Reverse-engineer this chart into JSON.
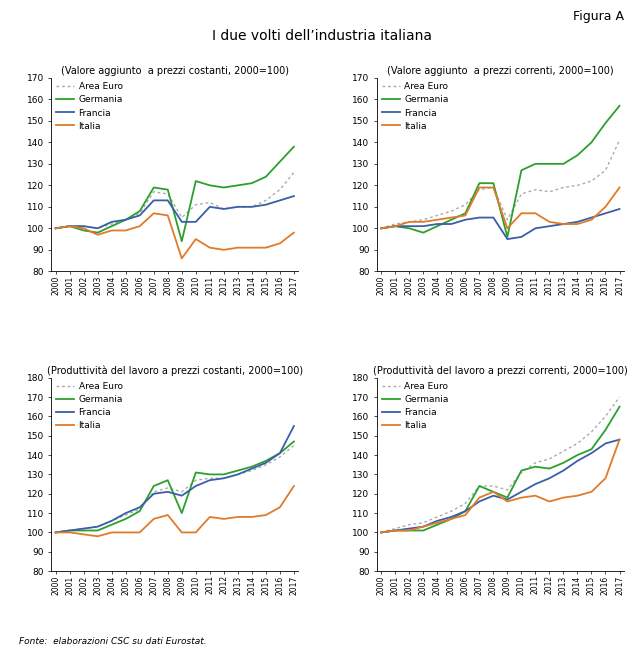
{
  "title": "I due volti dell’industria italiana",
  "figura": "Figura A",
  "fonte": "Fonte:  elaborazioni CSC su dati Eurostat.",
  "years": [
    2000,
    2001,
    2002,
    2003,
    2004,
    2005,
    2006,
    2007,
    2008,
    2009,
    2010,
    2011,
    2012,
    2013,
    2014,
    2015,
    2016,
    2017
  ],
  "subplots": [
    {
      "title": "(Valore aggiunto  a prezzi costanti, 2000=100)",
      "ylim": [
        80,
        170
      ],
      "yticks": [
        80,
        90,
        100,
        110,
        120,
        130,
        140,
        150,
        160,
        170
      ],
      "area_euro": [
        100,
        101,
        101,
        100,
        102,
        104,
        107,
        117,
        116,
        105,
        111,
        112,
        109,
        110,
        110,
        113,
        118,
        126
      ],
      "germania": [
        100,
        101,
        99,
        98,
        101,
        104,
        108,
        119,
        118,
        94,
        122,
        120,
        119,
        120,
        121,
        124,
        131,
        138
      ],
      "francia": [
        100,
        101,
        101,
        100,
        103,
        104,
        106,
        113,
        113,
        103,
        103,
        110,
        109,
        110,
        110,
        111,
        113,
        115
      ],
      "italia": [
        100,
        101,
        100,
        97,
        99,
        99,
        101,
        107,
        106,
        86,
        95,
        91,
        90,
        91,
        91,
        91,
        93,
        98
      ]
    },
    {
      "title": "(Valore aggiunto  a prezzi correnti, 2000=100)",
      "ylim": [
        80,
        170
      ],
      "yticks": [
        80,
        90,
        100,
        110,
        120,
        130,
        140,
        150,
        160,
        170
      ],
      "area_euro": [
        100,
        102,
        103,
        104,
        106,
        108,
        111,
        118,
        119,
        104,
        116,
        118,
        117,
        119,
        120,
        122,
        127,
        141
      ],
      "germania": [
        100,
        101,
        100,
        98,
        101,
        104,
        107,
        121,
        121,
        96,
        127,
        130,
        130,
        130,
        134,
        140,
        149,
        157
      ],
      "francia": [
        100,
        101,
        101,
        101,
        102,
        102,
        104,
        105,
        105,
        95,
        96,
        100,
        101,
        102,
        103,
        105,
        107,
        109
      ],
      "italia": [
        100,
        101,
        103,
        103,
        104,
        105,
        106,
        119,
        119,
        100,
        107,
        107,
        103,
        102,
        102,
        104,
        110,
        119
      ]
    },
    {
      "title": "(Produttività del lavoro a prezzi costanti, 2000=100)",
      "ylim": [
        80,
        180
      ],
      "yticks": [
        80,
        90,
        100,
        110,
        120,
        130,
        140,
        150,
        160,
        170,
        180
      ],
      "area_euro": [
        100,
        101,
        102,
        103,
        106,
        109,
        112,
        121,
        123,
        121,
        127,
        128,
        128,
        130,
        132,
        135,
        139,
        145
      ],
      "germania": [
        100,
        101,
        101,
        101,
        104,
        107,
        111,
        124,
        127,
        110,
        131,
        130,
        130,
        132,
        134,
        137,
        141,
        147
      ],
      "francia": [
        100,
        101,
        102,
        103,
        106,
        110,
        113,
        120,
        121,
        119,
        124,
        127,
        128,
        130,
        133,
        136,
        141,
        155
      ],
      "italia": [
        100,
        100,
        99,
        98,
        100,
        100,
        100,
        107,
        109,
        100,
        100,
        108,
        107,
        108,
        108,
        109,
        113,
        124
      ]
    },
    {
      "title": "(Produttività del lavoro a prezzi correnti, 2000=100)",
      "ylim": [
        80,
        180
      ],
      "yticks": [
        80,
        90,
        100,
        110,
        120,
        130,
        140,
        150,
        160,
        170,
        180
      ],
      "area_euro": [
        100,
        102,
        104,
        105,
        108,
        111,
        115,
        124,
        124,
        122,
        131,
        136,
        138,
        142,
        146,
        152,
        160,
        170
      ],
      "germania": [
        100,
        101,
        101,
        101,
        104,
        107,
        111,
        124,
        121,
        118,
        132,
        134,
        133,
        136,
        140,
        143,
        153,
        165
      ],
      "francia": [
        100,
        101,
        102,
        103,
        106,
        108,
        111,
        116,
        119,
        117,
        121,
        125,
        128,
        132,
        137,
        141,
        146,
        148
      ],
      "italia": [
        100,
        101,
        101,
        103,
        105,
        107,
        109,
        118,
        121,
        116,
        118,
        119,
        116,
        118,
        119,
        121,
        128,
        148
      ]
    }
  ],
  "colors": {
    "area_euro": "#aaaaaa",
    "germania": "#2ca02c",
    "francia": "#3a5ea8",
    "italia": "#e07b2a"
  }
}
